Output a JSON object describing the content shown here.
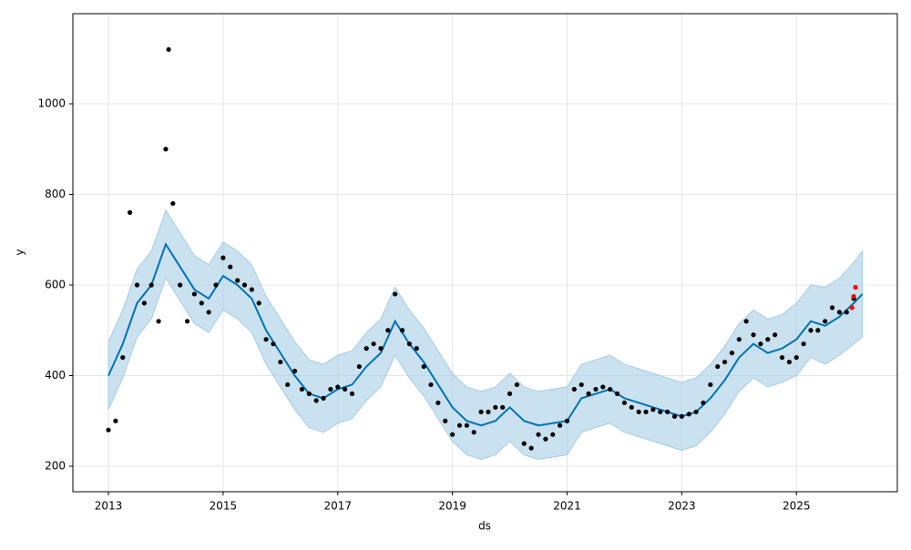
{
  "chart_data": {
    "type": "forecast",
    "xlabel": "ds",
    "ylabel": "y",
    "xlim": [
      2012.38,
      2026.76
    ],
    "ylim": [
      143.7,
      1199
    ],
    "xticks": [
      2013,
      2015,
      2017,
      2019,
      2021,
      2023,
      2025
    ],
    "yticks": [
      200,
      400,
      600,
      800,
      1000
    ],
    "grid": true,
    "band": {
      "color": "#a6cde4",
      "x": [
        2013,
        2013.25,
        2013.5,
        2013.75,
        2014,
        2014.25,
        2014.5,
        2014.75,
        2015,
        2015.25,
        2015.5,
        2015.75,
        2016,
        2016.25,
        2016.5,
        2016.75,
        2017,
        2017.25,
        2017.5,
        2017.75,
        2018,
        2018.25,
        2018.5,
        2018.75,
        2019,
        2019.25,
        2019.5,
        2019.75,
        2020,
        2020.25,
        2020.5,
        2020.75,
        2021,
        2021.25,
        2021.5,
        2021.75,
        2022,
        2022.25,
        2022.5,
        2022.75,
        2023,
        2023.25,
        2023.5,
        2023.75,
        2024,
        2024.25,
        2024.5,
        2024.75,
        2025,
        2025.25,
        2025.5,
        2025.75,
        2026,
        2026.15
      ],
      "lower": [
        325,
        395,
        485,
        525,
        615,
        565,
        515,
        495,
        545,
        525,
        495,
        425,
        375,
        325,
        285,
        275,
        295,
        305,
        345,
        375,
        445,
        395,
        355,
        305,
        255,
        225,
        215,
        225,
        255,
        225,
        215,
        220,
        225,
        275,
        285,
        295,
        275,
        265,
        255,
        245,
        235,
        245,
        275,
        315,
        365,
        395,
        375,
        385,
        400,
        440,
        425,
        445,
        470,
        485
      ],
      "upper": [
        475,
        545,
        635,
        675,
        765,
        715,
        665,
        645,
        695,
        675,
        645,
        575,
        525,
        475,
        435,
        425,
        445,
        455,
        495,
        525,
        595,
        545,
        505,
        455,
        405,
        375,
        365,
        375,
        405,
        375,
        365,
        370,
        375,
        425,
        435,
        445,
        425,
        415,
        405,
        395,
        385,
        395,
        425,
        465,
        515,
        545,
        525,
        535,
        560,
        600,
        595,
        615,
        650,
        675
      ]
    },
    "series": [
      {
        "color": "#0072b2",
        "marker": "line",
        "x": [
          2013,
          2013.25,
          2013.5,
          2013.75,
          2014,
          2014.25,
          2014.5,
          2014.75,
          2015,
          2015.25,
          2015.5,
          2015.75,
          2016,
          2016.25,
          2016.5,
          2016.75,
          2017,
          2017.25,
          2017.5,
          2017.75,
          2018,
          2018.25,
          2018.5,
          2018.75,
          2019,
          2019.25,
          2019.5,
          2019.75,
          2020,
          2020.25,
          2020.5,
          2020.75,
          2021,
          2021.25,
          2021.5,
          2021.75,
          2022,
          2022.25,
          2022.5,
          2022.75,
          2023,
          2023.25,
          2023.5,
          2023.75,
          2024,
          2024.25,
          2024.5,
          2024.75,
          2025,
          2025.25,
          2025.5,
          2025.75,
          2026,
          2026.15
        ],
        "values": [
          400,
          470,
          560,
          600,
          690,
          640,
          590,
          570,
          620,
          600,
          570,
          500,
          450,
          400,
          360,
          350,
          370,
          380,
          420,
          450,
          520,
          470,
          430,
          380,
          330,
          300,
          290,
          300,
          330,
          300,
          290,
          295,
          300,
          350,
          360,
          370,
          350,
          340,
          330,
          320,
          310,
          320,
          350,
          390,
          440,
          470,
          450,
          460,
          480,
          520,
          510,
          530,
          560,
          580
        ]
      },
      {
        "color": "#000000",
        "marker": "dot",
        "x": [
          2013,
          2013.125,
          2013.25,
          2013.375,
          2013.5,
          2013.625,
          2013.75,
          2013.875,
          2014,
          2014.05,
          2014.125,
          2014.25,
          2014.375,
          2014.5,
          2014.625,
          2014.75,
          2014.875,
          2015,
          2015.125,
          2015.25,
          2015.375,
          2015.5,
          2015.625,
          2015.75,
          2015.875,
          2016,
          2016.125,
          2016.25,
          2016.375,
          2016.5,
          2016.625,
          2016.75,
          2016.875,
          2017,
          2017.125,
          2017.25,
          2017.375,
          2017.5,
          2017.625,
          2017.75,
          2017.875,
          2018,
          2018.125,
          2018.25,
          2018.375,
          2018.5,
          2018.625,
          2018.75,
          2018.875,
          2019,
          2019.125,
          2019.25,
          2019.375,
          2019.5,
          2019.625,
          2019.75,
          2019.875,
          2020,
          2020.125,
          2020.25,
          2020.375,
          2020.5,
          2020.625,
          2020.75,
          2020.875,
          2021,
          2021.125,
          2021.25,
          2021.375,
          2021.5,
          2021.625,
          2021.75,
          2021.875,
          2022,
          2022.125,
          2022.25,
          2022.375,
          2022.5,
          2022.625,
          2022.75,
          2022.875,
          2023,
          2023.125,
          2023.25,
          2023.375,
          2023.5,
          2023.625,
          2023.75,
          2023.875,
          2024,
          2024.125,
          2024.25,
          2024.375,
          2024.5,
          2024.625,
          2024.75,
          2024.875,
          2025,
          2025.125,
          2025.25,
          2025.375,
          2025.5,
          2025.625,
          2025.75,
          2025.875,
          2026
        ],
        "values": [
          280,
          300,
          440,
          760,
          600,
          560,
          600,
          520,
          900,
          1120,
          780,
          600,
          520,
          580,
          560,
          540,
          600,
          660,
          640,
          610,
          600,
          590,
          560,
          480,
          470,
          430,
          380,
          410,
          370,
          360,
          345,
          350,
          370,
          375,
          370,
          360,
          420,
          460,
          470,
          460,
          500,
          580,
          500,
          470,
          460,
          420,
          380,
          340,
          300,
          270,
          290,
          290,
          275,
          320,
          320,
          330,
          330,
          360,
          380,
          250,
          240,
          270,
          260,
          270,
          290,
          300,
          370,
          380,
          360,
          370,
          375,
          370,
          360,
          340,
          330,
          320,
          320,
          325,
          320,
          320,
          310,
          310,
          315,
          320,
          340,
          380,
          420,
          430,
          450,
          480,
          520,
          490,
          470,
          480,
          490,
          440,
          430,
          440,
          470,
          500,
          500,
          520,
          550,
          540,
          540,
          570
        ]
      },
      {
        "color": "#ff0000",
        "marker": "dot",
        "x": [
          2025.97,
          2026.0,
          2026.03
        ],
        "values": [
          550,
          575,
          595
        ]
      }
    ]
  }
}
